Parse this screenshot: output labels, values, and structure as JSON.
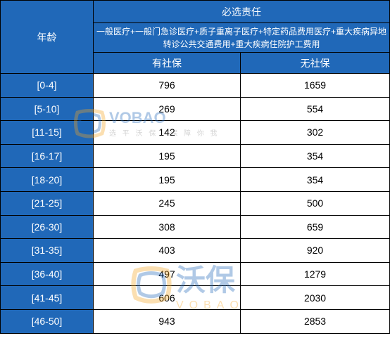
{
  "headers": {
    "age": "年龄",
    "group": "必选责任",
    "description": "一般医疗+一般门急诊医疗+质子重离子医疗+特定药品费用医疗+重大疾病异地转诊公共交通费用+重大疾病住院护工费用",
    "with_social": "有社保",
    "without_social": "无社保"
  },
  "rows": [
    {
      "age": "[0-4]",
      "with": "796",
      "without": "1659"
    },
    {
      "age": "[5-10]",
      "with": "269",
      "without": "554"
    },
    {
      "age": "[11-15]",
      "with": "142",
      "without": "302"
    },
    {
      "age": "[16-17]",
      "with": "195",
      "without": "354"
    },
    {
      "age": "[18-20]",
      "with": "195",
      "without": "354"
    },
    {
      "age": "[21-25]",
      "with": "245",
      "without": "500"
    },
    {
      "age": "[26-30]",
      "with": "308",
      "without": "659"
    },
    {
      "age": "[31-35]",
      "with": "403",
      "without": "920"
    },
    {
      "age": "[36-40]",
      "with": "497",
      "without": "1279"
    },
    {
      "age": "[41-45]",
      "with": "606",
      "without": "2030"
    },
    {
      "age": "[46-50]",
      "with": "943",
      "without": "2853"
    }
  ],
  "watermark": {
    "brand": "沃保",
    "brand_en": "VOBAO",
    "tagline": "选 平 沃 保 · 保 障 你 我"
  },
  "colors": {
    "header_bg": "#2068b8",
    "header_text": "#ffffff",
    "cell_bg": "#ffffff",
    "cell_text": "#000000",
    "border": "#000000"
  }
}
